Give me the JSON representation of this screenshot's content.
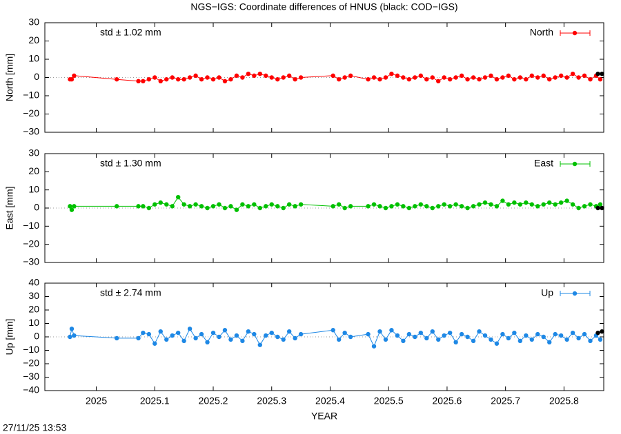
{
  "title": "NGS−IGS: Coordinate differences of HNUS (black: COD−IGS)",
  "timestamp": "27/11/25 13:53",
  "chart_data": [
    {
      "type": "line",
      "ylabel": "North [mm]",
      "annotation": "std ± 1.02 mm",
      "xlim": [
        2024.912,
        2025.868
      ],
      "xticks": [
        2025,
        2025.1,
        2025.2,
        2025.3,
        2025.4,
        2025.5,
        2025.6,
        2025.7,
        2025.8
      ],
      "ylim": [
        -30,
        30
      ],
      "yticks": [
        {
          "value": -30,
          "label": "−30"
        },
        {
          "value": -20,
          "label": "−20"
        },
        {
          "value": -10,
          "label": "−10"
        },
        0,
        10,
        20,
        30
      ],
      "series": [
        {
          "name": "North",
          "color": "#ff0000",
          "x": [
            2024.955,
            2024.958,
            2024.962,
            2025.035,
            2025.072,
            2025.08,
            2025.09,
            2025.1,
            2025.11,
            2025.12,
            2025.13,
            2025.14,
            2025.15,
            2025.16,
            2025.17,
            2025.18,
            2025.19,
            2025.2,
            2025.21,
            2025.22,
            2025.23,
            2025.24,
            2025.25,
            2025.26,
            2025.27,
            2025.28,
            2025.29,
            2025.3,
            2025.31,
            2025.32,
            2025.33,
            2025.34,
            2025.35,
            2025.405,
            2025.415,
            2025.425,
            2025.435,
            2025.465,
            2025.475,
            2025.485,
            2025.495,
            2025.505,
            2025.515,
            2025.525,
            2025.535,
            2025.545,
            2025.555,
            2025.565,
            2025.575,
            2025.585,
            2025.595,
            2025.605,
            2025.615,
            2025.625,
            2025.635,
            2025.645,
            2025.655,
            2025.665,
            2025.675,
            2025.685,
            2025.695,
            2025.705,
            2025.715,
            2025.725,
            2025.735,
            2025.745,
            2025.755,
            2025.765,
            2025.775,
            2025.785,
            2025.795,
            2025.805,
            2025.815,
            2025.825,
            2025.835,
            2025.845,
            2025.855,
            2025.862
          ],
          "values": [
            -1,
            -1,
            1,
            -1,
            -2,
            -2,
            -1,
            0,
            -2,
            -1,
            0,
            -1,
            -1,
            0,
            1,
            -1,
            0,
            -1,
            0,
            -2,
            -1,
            1,
            0,
            2,
            1,
            2,
            1,
            0,
            -1,
            0,
            1,
            -1,
            0,
            1,
            -1,
            0,
            1,
            -1,
            0,
            -1,
            0,
            2,
            1,
            0,
            -1,
            0,
            1,
            -1,
            0,
            -2,
            0,
            -1,
            0,
            1,
            -1,
            0,
            -1,
            0,
            1,
            -1,
            0,
            1,
            -1,
            0,
            -1,
            1,
            0,
            1,
            -1,
            0,
            1,
            0,
            2,
            0,
            1,
            -1,
            1,
            -1
          ]
        },
        {
          "color": "#000000",
          "x": [
            2025.858,
            2025.865
          ],
          "values": [
            2,
            2
          ]
        }
      ]
    },
    {
      "type": "line",
      "ylabel": "East [mm]",
      "annotation": "std ± 1.30 mm",
      "xlim": [
        2024.912,
        2025.868
      ],
      "xticks": [
        2025,
        2025.1,
        2025.2,
        2025.3,
        2025.4,
        2025.5,
        2025.6,
        2025.7,
        2025.8
      ],
      "ylim": [
        -30,
        30
      ],
      "yticks": [
        {
          "value": -30,
          "label": "−30"
        },
        {
          "value": -20,
          "label": "−20"
        },
        {
          "value": -10,
          "label": "−10"
        },
        0,
        10,
        20,
        30
      ],
      "series": [
        {
          "name": "East",
          "color": "#00c000",
          "x": [
            2024.955,
            2024.958,
            2024.962,
            2025.035,
            2025.072,
            2025.08,
            2025.09,
            2025.1,
            2025.11,
            2025.12,
            2025.13,
            2025.14,
            2025.15,
            2025.16,
            2025.17,
            2025.18,
            2025.19,
            2025.2,
            2025.21,
            2025.22,
            2025.23,
            2025.24,
            2025.25,
            2025.26,
            2025.27,
            2025.28,
            2025.29,
            2025.3,
            2025.31,
            2025.32,
            2025.33,
            2025.34,
            2025.35,
            2025.405,
            2025.415,
            2025.425,
            2025.435,
            2025.465,
            2025.475,
            2025.485,
            2025.495,
            2025.505,
            2025.515,
            2025.525,
            2025.535,
            2025.545,
            2025.555,
            2025.565,
            2025.575,
            2025.585,
            2025.595,
            2025.605,
            2025.615,
            2025.625,
            2025.635,
            2025.645,
            2025.655,
            2025.665,
            2025.675,
            2025.685,
            2025.695,
            2025.705,
            2025.715,
            2025.725,
            2025.735,
            2025.745,
            2025.755,
            2025.765,
            2025.775,
            2025.785,
            2025.795,
            2025.805,
            2025.815,
            2025.825,
            2025.835,
            2025.845,
            2025.855,
            2025.862
          ],
          "values": [
            1,
            -1,
            1,
            1,
            1,
            1,
            0,
            2,
            3,
            2,
            1,
            6,
            2,
            1,
            2,
            1,
            0,
            1,
            2,
            0,
            1,
            -1,
            2,
            1,
            2,
            0,
            1,
            2,
            1,
            0,
            2,
            1,
            2,
            1,
            2,
            0,
            1,
            1,
            2,
            1,
            0,
            1,
            2,
            1,
            0,
            1,
            2,
            1,
            0,
            1,
            2,
            1,
            2,
            1,
            0,
            1,
            2,
            3,
            2,
            1,
            4,
            2,
            3,
            2,
            3,
            2,
            1,
            2,
            3,
            2,
            3,
            4,
            2,
            0,
            1,
            2,
            1,
            2
          ]
        },
        {
          "color": "#000000",
          "x": [
            2025.858,
            2025.865
          ],
          "values": [
            0,
            0
          ]
        }
      ]
    },
    {
      "type": "line",
      "ylabel": "Up [mm]",
      "annotation": "std ± 2.74 mm",
      "xlabel": "YEAR",
      "xlim": [
        2024.912,
        2025.868
      ],
      "xticks": [
        2025,
        2025.1,
        2025.2,
        2025.3,
        2025.4,
        2025.5,
        2025.6,
        2025.7,
        2025.8
      ],
      "ylim": [
        -40,
        40
      ],
      "yticks": [
        {
          "value": -40,
          "label": "−40"
        },
        {
          "value": -30,
          "label": "−30"
        },
        {
          "value": -20,
          "label": "−20"
        },
        {
          "value": -10,
          "label": "−10"
        },
        0,
        10,
        20,
        30,
        40
      ],
      "series": [
        {
          "name": "Up",
          "color": "#1e88e5",
          "x": [
            2024.955,
            2024.958,
            2024.962,
            2025.035,
            2025.072,
            2025.08,
            2025.09,
            2025.1,
            2025.11,
            2025.12,
            2025.13,
            2025.14,
            2025.15,
            2025.16,
            2025.17,
            2025.18,
            2025.19,
            2025.2,
            2025.21,
            2025.22,
            2025.23,
            2025.24,
            2025.25,
            2025.26,
            2025.27,
            2025.28,
            2025.29,
            2025.3,
            2025.31,
            2025.32,
            2025.33,
            2025.34,
            2025.35,
            2025.405,
            2025.415,
            2025.425,
            2025.435,
            2025.465,
            2025.475,
            2025.485,
            2025.495,
            2025.505,
            2025.515,
            2025.525,
            2025.535,
            2025.545,
            2025.555,
            2025.565,
            2025.575,
            2025.585,
            2025.595,
            2025.605,
            2025.615,
            2025.625,
            2025.635,
            2025.645,
            2025.655,
            2025.665,
            2025.675,
            2025.685,
            2025.695,
            2025.705,
            2025.715,
            2025.725,
            2025.735,
            2025.745,
            2025.755,
            2025.765,
            2025.775,
            2025.785,
            2025.795,
            2025.805,
            2025.815,
            2025.825,
            2025.835,
            2025.845,
            2025.855,
            2025.862
          ],
          "values": [
            0,
            6,
            1,
            -1,
            -1,
            3,
            2,
            -5,
            4,
            -2,
            1,
            3,
            -3,
            6,
            -1,
            2,
            -4,
            3,
            0,
            5,
            -2,
            1,
            -3,
            4,
            2,
            -6,
            1,
            3,
            0,
            -2,
            4,
            -1,
            2,
            5,
            -2,
            3,
            0,
            2,
            -7,
            4,
            -2,
            5,
            1,
            -3,
            2,
            0,
            3,
            -1,
            4,
            -2,
            1,
            3,
            -4,
            2,
            0,
            -3,
            4,
            1,
            -2,
            -5,
            2,
            -1,
            3,
            -3,
            1,
            -2,
            2,
            0,
            -4,
            2,
            1,
            -2,
            3,
            -1,
            2,
            -3,
            1,
            -2
          ]
        },
        {
          "color": "#000000",
          "x": [
            2025.858,
            2025.865
          ],
          "values": [
            3,
            4
          ]
        }
      ]
    }
  ]
}
